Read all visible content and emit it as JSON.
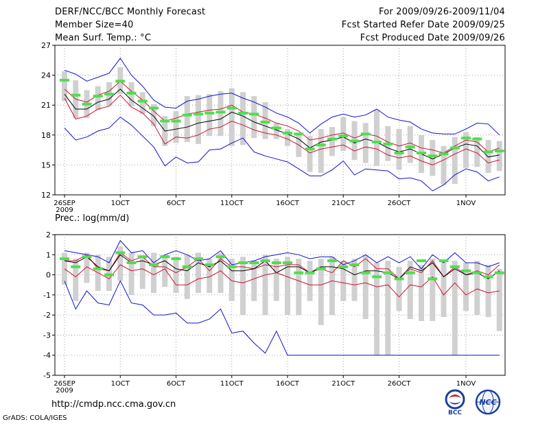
{
  "header": {
    "title": "DERF/NCC/BCC Monthly Forecast",
    "member_size": "Member Size=40",
    "variable": "Mean Surf. Temp.: °C",
    "for_range": "For 2009/09/26-2009/11/04",
    "started": "Fcst Started Refer Date 2009/09/25",
    "produced": "Fcst Produced Date 2009/09/26"
  },
  "footer": {
    "url": "http://cmdp.ncc.cma.gov.cn",
    "credit": "GrADS: COLA/IGES"
  },
  "logos": {
    "bcc": "BCC",
    "ncc": "NCC"
  },
  "colors": {
    "envelope": "#1010d0",
    "spread": "#d01030",
    "mean": "#000000",
    "box": "#d0d0d0",
    "obs": "#4ddf4d",
    "grid": "#888888"
  },
  "chart_data": [
    {
      "type": "line",
      "title": "Mean Surf. Temp.: °C",
      "xlabel": "",
      "ylabel": "",
      "x_ticks": [
        "26SEP",
        "1OCT",
        "6OCT",
        "11OCT",
        "16OCT",
        "21OCT",
        "26OCT",
        "1NOV"
      ],
      "x_tick_days": [
        1,
        6,
        11,
        16,
        21,
        26,
        31,
        37
      ],
      "x_year": "2009",
      "ylim": [
        12,
        27
      ],
      "y_ticks": [
        12,
        15,
        18,
        21,
        24,
        27
      ],
      "grid": true,
      "days": [
        1,
        2,
        3,
        4,
        5,
        6,
        7,
        8,
        9,
        10,
        11,
        12,
        13,
        14,
        15,
        16,
        17,
        18,
        19,
        20,
        21,
        22,
        23,
        24,
        25,
        26,
        27,
        28,
        29,
        30,
        31,
        32,
        33,
        34,
        35,
        36,
        37,
        38,
        39,
        40
      ],
      "series": [
        {
          "name": "max",
          "values": [
            24.5,
            24.1,
            23.4,
            23.8,
            24.2,
            25.7,
            24.0,
            22.9,
            21.5,
            20.8,
            20.7,
            21.4,
            21.6,
            21.9,
            22.1,
            22.2,
            21.7,
            21.3,
            20.8,
            20.2,
            19.8,
            19.2,
            18.2,
            19.1,
            19.8,
            20.1,
            19.8,
            20.0,
            20.6,
            19.8,
            19.5,
            19.3,
            18.6,
            18.2,
            18.1,
            18.1,
            18.6,
            19.2,
            19.1,
            18.0
          ]
        },
        {
          "name": "upper",
          "values": [
            22.6,
            21.6,
            21.3,
            22.0,
            22.4,
            23.4,
            22.4,
            21.5,
            20.4,
            19.4,
            19.7,
            20.1,
            20.3,
            20.5,
            20.6,
            21.0,
            20.3,
            20.1,
            19.7,
            19.2,
            18.9,
            18.4,
            17.5,
            17.7,
            18.0,
            18.2,
            17.7,
            18.1,
            17.9,
            17.3,
            16.9,
            17.2,
            16.7,
            16.5,
            16.2,
            16.9,
            17.5,
            17.3,
            16.3,
            16.7
          ]
        },
        {
          "name": "mean",
          "values": [
            22.1,
            20.6,
            20.6,
            21.3,
            21.6,
            22.6,
            21.5,
            20.7,
            19.9,
            18.4,
            18.6,
            18.8,
            19.2,
            19.4,
            19.6,
            20.3,
            19.9,
            19.3,
            18.9,
            18.5,
            18.1,
            17.6,
            16.7,
            17.3,
            17.5,
            17.8,
            17.2,
            17.6,
            17.3,
            16.7,
            16.3,
            16.6,
            16.1,
            15.6,
            16.1,
            16.7,
            17.1,
            16.9,
            15.8,
            16.0
          ]
        },
        {
          "name": "lower",
          "values": [
            21.7,
            19.6,
            19.9,
            20.6,
            20.9,
            22.0,
            20.8,
            20.2,
            19.1,
            17.1,
            17.8,
            17.7,
            18.0,
            18.6,
            18.8,
            19.4,
            19.0,
            18.5,
            18.2,
            18.0,
            17.6,
            17.0,
            16.2,
            16.6,
            16.8,
            17.0,
            16.4,
            16.8,
            16.6,
            16.0,
            15.7,
            15.9,
            15.4,
            15.0,
            15.5,
            16.1,
            16.6,
            16.2,
            15.2,
            15.5
          ]
        },
        {
          "name": "min",
          "values": [
            18.7,
            17.5,
            17.8,
            18.4,
            18.7,
            19.8,
            19.0,
            17.9,
            16.8,
            14.9,
            15.8,
            15.2,
            15.3,
            16.5,
            16.6,
            17.2,
            17.7,
            16.3,
            15.9,
            15.6,
            15.3,
            14.6,
            13.9,
            13.9,
            14.5,
            15.4,
            14.0,
            14.6,
            14.5,
            14.4,
            13.6,
            13.7,
            13.4,
            12.4,
            13.0,
            14.0,
            14.6,
            14.3,
            13.4,
            13.8
          ]
        },
        {
          "name": "obs",
          "values": [
            23.5,
            22.0,
            21.1,
            21.9,
            22.1,
            23.4,
            22.2,
            21.4,
            20.7,
            19.4,
            19.4,
            20.0,
            20.1,
            20.2,
            20.3,
            20.7,
            20.2,
            20.1,
            19.3,
            18.7,
            18.2,
            18.1,
            16.6,
            17.0,
            17.6,
            17.9,
            17.4,
            18.1,
            17.3,
            17.1,
            16.2,
            16.8,
            16.2,
            15.9,
            16.1,
            16.7,
            17.7,
            17.6,
            16.3,
            16.4
          ]
        }
      ],
      "box": {
        "top": [
          24.4,
          23.5,
          22.5,
          22.9,
          23.3,
          24.8,
          23.3,
          22.3,
          21.1,
          19.9,
          20.4,
          21.9,
          22.0,
          22.1,
          22.4,
          22.7,
          22.3,
          21.9,
          21.3,
          19.2,
          18.6,
          18.0,
          17.9,
          18.6,
          18.8,
          19.8,
          19.4,
          19.2,
          20.5,
          18.9,
          18.6,
          18.9,
          18.0,
          17.5,
          16.9,
          17.8,
          18.3,
          17.8,
          17.5,
          17.4
        ],
        "bottom": [
          21.4,
          19.7,
          19.7,
          20.5,
          20.9,
          22.1,
          20.9,
          20.1,
          18.9,
          16.9,
          17.2,
          17.3,
          17.1,
          17.9,
          17.9,
          16.9,
          17.0,
          17.7,
          17.6,
          17.6,
          16.9,
          15.8,
          14.3,
          14.2,
          15.9,
          16.4,
          15.5,
          15.2,
          14.9,
          15.4,
          14.5,
          15.2,
          14.2,
          13.9,
          13.0,
          13.1,
          14.7,
          14.8,
          14.2,
          14.4
        ]
      }
    },
    {
      "type": "line",
      "title": "Prec.: log(mm/d)",
      "xlabel": "",
      "ylabel": "",
      "x_ticks": [
        "26SEP",
        "1OCT",
        "6OCT",
        "11OCT",
        "16OCT",
        "21OCT",
        "26OCT",
        "1NOV"
      ],
      "x_tick_days": [
        1,
        6,
        11,
        16,
        21,
        26,
        31,
        37
      ],
      "x_year": "2009",
      "ylim": [
        -5,
        2
      ],
      "y_ticks": [
        -5,
        -4,
        -3,
        -2,
        -1,
        0,
        1,
        2
      ],
      "grid": true,
      "days": [
        1,
        2,
        3,
        4,
        5,
        6,
        7,
        8,
        9,
        10,
        11,
        12,
        13,
        14,
        15,
        16,
        17,
        18,
        19,
        20,
        21,
        22,
        23,
        24,
        25,
        26,
        27,
        28,
        29,
        30,
        31,
        32,
        33,
        34,
        35,
        36,
        37,
        38,
        39,
        40
      ],
      "series": [
        {
          "name": "max",
          "values": [
            1.2,
            1.1,
            1.0,
            0.9,
            0.6,
            1.7,
            1.1,
            1.2,
            0.6,
            1.0,
            1.2,
            1.0,
            0.7,
            0.8,
            1.2,
            0.5,
            0.6,
            0.7,
            0.9,
            1.0,
            1.1,
            1.0,
            0.8,
            0.9,
            0.9,
            0.5,
            0.7,
            1.0,
            0.6,
            0.9,
            0.6,
            0.9,
            0.3,
            1.0,
            0.6,
            1.1,
            0.6,
            0.6,
            0.4,
            0.6
          ]
        },
        {
          "name": "upper",
          "values": [
            0.7,
            0.7,
            1.0,
            0.3,
            0.2,
            1.1,
            0.7,
            0.9,
            0.4,
            0.4,
            0.1,
            0.4,
            0.8,
            0.2,
            0.8,
            0.4,
            0.4,
            0.3,
            0.5,
            0.4,
            0.5,
            0.5,
            0.1,
            0.3,
            0.1,
            0.7,
            0.4,
            0.8,
            0.3,
            0.3,
            -0.2,
            0.3,
            0.1,
            0.7,
            -0.1,
            0.4,
            0.0,
            0.2,
            0.0,
            0.5
          ]
        },
        {
          "name": "mean",
          "values": [
            0.7,
            0.6,
            0.9,
            0.4,
            0.2,
            1.0,
            0.6,
            0.7,
            0.5,
            0.7,
            0.3,
            0.2,
            0.6,
            0.4,
            0.7,
            0.2,
            0.2,
            0.3,
            0.7,
            0.1,
            0.4,
            0.4,
            0.1,
            0.4,
            0.4,
            0.3,
            0.0,
            0.2,
            0.2,
            0.1,
            -0.2,
            0.4,
            0.2,
            0.6,
            -0.1,
            0.3,
            0.0,
            0.1,
            -0.2,
            0.2
          ]
        },
        {
          "name": "lower",
          "values": [
            0.3,
            -0.1,
            0.4,
            0.1,
            -0.2,
            0.5,
            0.2,
            0.3,
            0.0,
            0.3,
            -0.5,
            -0.5,
            -0.2,
            -0.1,
            0.2,
            -0.3,
            -0.4,
            -0.2,
            0.0,
            0.1,
            -0.1,
            -0.3,
            -0.5,
            -0.5,
            -0.3,
            -0.4,
            -0.5,
            -0.4,
            -0.6,
            -0.5,
            -1.1,
            -0.5,
            -0.6,
            -0.1,
            -1.0,
            -0.4,
            -1.0,
            -0.7,
            -0.9,
            -0.8
          ]
        },
        {
          "name": "min",
          "values": [
            -0.3,
            -1.7,
            -0.8,
            -1.4,
            -1.5,
            -0.3,
            -1.4,
            -1.5,
            -2.0,
            -2.0,
            -1.9,
            -2.4,
            -2.4,
            -2.2,
            -1.7,
            -2.9,
            -2.8,
            -3.4,
            -3.9,
            -2.8,
            -4.0,
            -4.0,
            -4.0,
            -4.0,
            -4.0,
            -4.0,
            -4.0,
            -4.0,
            -4.0,
            -4.0,
            -4.0,
            -4.0,
            -4.0,
            -4.0,
            -4.0,
            -4.0,
            -4.0,
            -4.0,
            -4.0,
            -4.0
          ]
        },
        {
          "name": "obs",
          "values": [
            0.8,
            0.4,
            0.9,
            0.3,
            0.0,
            1.1,
            0.6,
            0.9,
            0.5,
            0.9,
            0.8,
            0.4,
            0.8,
            0.5,
            0.9,
            0.4,
            0.6,
            0.6,
            0.7,
            0.6,
            0.6,
            0.1,
            0.1,
            0.3,
            0.7,
            0.4,
            0.5,
            0.1,
            -0.1,
            0.1,
            -0.2,
            0.1,
            0.7,
            -0.2,
            0.7,
            0.4,
            0.2,
            0.1,
            -0.1,
            0.1
          ]
        }
      ],
      "box": {
        "top": [
          1.1,
          0.8,
          1.1,
          1.0,
          0.9,
          1.4,
          1.1,
          0.9,
          1.1,
          1.0,
          0.9,
          1.0,
          1.1,
          0.8,
          1.1,
          0.8,
          0.9,
          0.7,
          1.0,
          0.8,
          0.9,
          0.8,
          0.7,
          0.8,
          0.9,
          0.7,
          0.8,
          1.0,
          0.6,
          0.7,
          0.4,
          0.7,
          0.5,
          0.8,
          0.7,
          0.7,
          0.6,
          0.7,
          0.5,
          0.3
        ],
        "bottom": [
          -0.5,
          -1.3,
          -0.4,
          -0.8,
          -0.8,
          -0.3,
          -1.0,
          -0.7,
          -0.9,
          -0.6,
          -0.9,
          -1.2,
          -0.9,
          -0.9,
          -0.9,
          -1.3,
          -2.0,
          -1.3,
          -2.0,
          -1.3,
          -2.0,
          -2.0,
          -1.3,
          -2.5,
          -2.0,
          -1.3,
          -1.3,
          -2.2,
          -4.0,
          -4.0,
          -1.8,
          -2.2,
          -2.3,
          -2.3,
          -2.1,
          -4.0,
          -1.8,
          -2.0,
          -2.1,
          -2.8
        ]
      }
    }
  ]
}
